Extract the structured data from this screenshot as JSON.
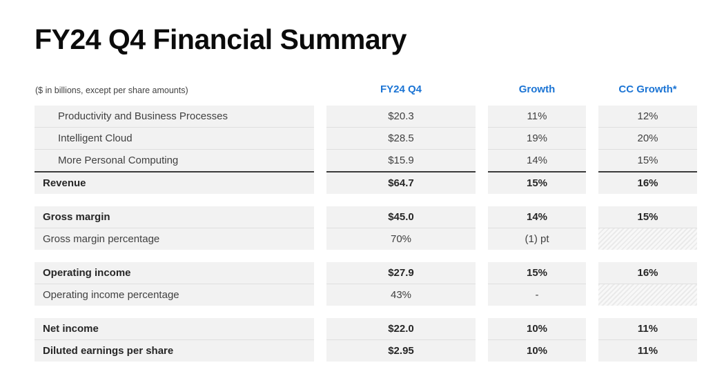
{
  "title": "FY24 Q4 Financial Summary",
  "note": "($ in billions, except per share amounts)",
  "columns": [
    "FY24 Q4",
    "Growth",
    "CC Growth*"
  ],
  "colors": {
    "accent": "#1B74D4",
    "cell_bg": "#F2F2F2",
    "separator": "#DFDFDF",
    "total_rule": "#3A3A3A",
    "text": "#404040",
    "text_bold": "#262626",
    "title": "#0B0B0B"
  },
  "table": {
    "groups": [
      {
        "rows": [
          {
            "label": "Productivity and Business Processes",
            "indent": true,
            "bold": false,
            "total": false,
            "values": [
              "$20.3",
              "11%",
              "12%"
            ]
          },
          {
            "label": "Intelligent Cloud",
            "indent": true,
            "bold": false,
            "total": false,
            "values": [
              "$28.5",
              "19%",
              "20%"
            ]
          },
          {
            "label": "More Personal Computing",
            "indent": true,
            "bold": false,
            "total": false,
            "values": [
              "$15.9",
              "14%",
              "15%"
            ]
          },
          {
            "label": "Revenue",
            "indent": false,
            "bold": true,
            "total": true,
            "values": [
              "$64.7",
              "15%",
              "16%"
            ]
          }
        ]
      },
      {
        "rows": [
          {
            "label": "Gross margin",
            "indent": false,
            "bold": true,
            "total": false,
            "values": [
              "$45.0",
              "14%",
              "15%"
            ]
          },
          {
            "label": "Gross margin percentage",
            "indent": false,
            "bold": false,
            "total": false,
            "values": [
              "70%",
              "(1) pt",
              null
            ]
          }
        ]
      },
      {
        "rows": [
          {
            "label": "Operating income",
            "indent": false,
            "bold": true,
            "total": false,
            "values": [
              "$27.9",
              "15%",
              "16%"
            ]
          },
          {
            "label": "Operating income percentage",
            "indent": false,
            "bold": false,
            "total": false,
            "values": [
              "43%",
              "-",
              null
            ]
          }
        ]
      },
      {
        "rows": [
          {
            "label": "Net income",
            "indent": false,
            "bold": true,
            "total": false,
            "values": [
              "$22.0",
              "10%",
              "11%"
            ]
          },
          {
            "label": "Diluted earnings per share",
            "indent": false,
            "bold": true,
            "total": false,
            "values": [
              "$2.95",
              "10%",
              "11%"
            ]
          }
        ]
      }
    ]
  }
}
